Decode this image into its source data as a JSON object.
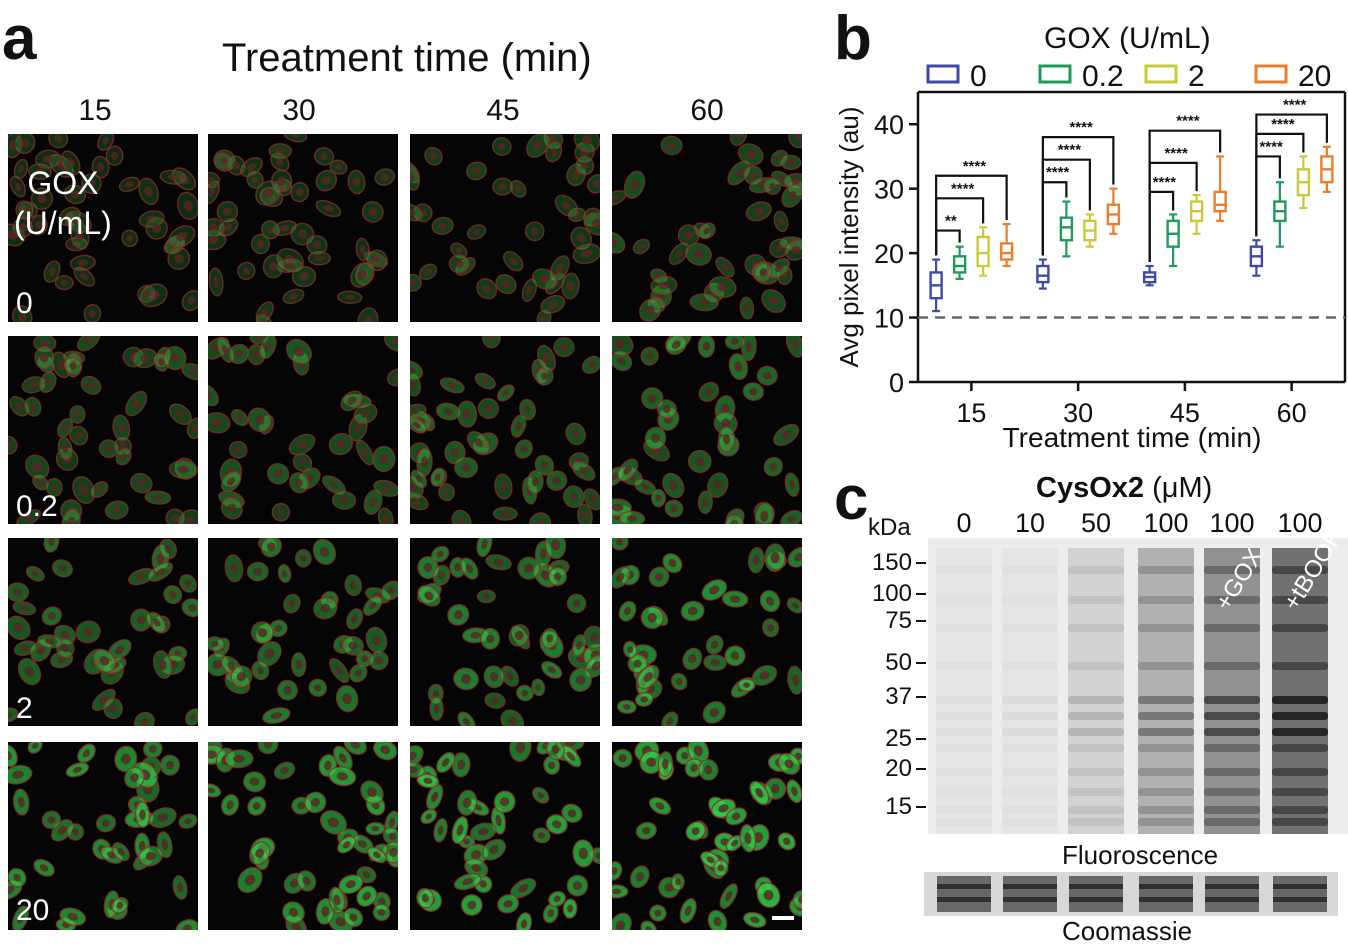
{
  "panel_a": {
    "letter": "a",
    "title": "Treatment time (min)",
    "time_labels": [
      "15",
      "30",
      "45",
      "60"
    ],
    "gox_label_line1": "GOX",
    "gox_label_line2": "(U/mL)",
    "row_labels": [
      "0",
      "0.2",
      "2",
      "20"
    ],
    "intensity_by_row": [
      0.15,
      0.35,
      0.55,
      0.8
    ],
    "intensity_boost_by_col": [
      0.0,
      0.05,
      0.1,
      0.2
    ],
    "colors": {
      "cell_green": "#2fd24a",
      "cell_red": "#8b2a2a",
      "background": "#050505"
    }
  },
  "panel_b": {
    "letter": "b",
    "legend_title": "GOX (U/mL)",
    "chart_data": {
      "type": "box",
      "categories": [
        "15",
        "30",
        "45",
        "60"
      ],
      "xlabel": "Treatment time (min)",
      "ylabel": "Avg pixel intensity (au)",
      "ylim": [
        0,
        45
      ],
      "yticks": [
        0,
        10,
        20,
        30,
        40
      ],
      "reference_line": 10,
      "legend_position": "top",
      "series": [
        {
          "name": "0",
          "color": "#3f4aa6",
          "boxes": [
            {
              "min": 11,
              "q1": 13,
              "median": 15,
              "q3": 17,
              "max": 19
            },
            {
              "min": 14.5,
              "q1": 15.5,
              "median": 16.5,
              "q3": 18,
              "max": 19
            },
            {
              "min": 15,
              "q1": 15.5,
              "median": 16.3,
              "q3": 17,
              "max": 18
            },
            {
              "min": 16.5,
              "q1": 18,
              "median": 19.5,
              "q3": 21,
              "max": 22
            }
          ]
        },
        {
          "name": "0.2",
          "color": "#1f9a5a",
          "boxes": [
            {
              "min": 16,
              "q1": 17,
              "median": 18,
              "q3": 19.5,
              "max": 21
            },
            {
              "min": 19.5,
              "q1": 22,
              "median": 24,
              "q3": 25.5,
              "max": 28
            },
            {
              "min": 18,
              "q1": 21,
              "median": 23,
              "q3": 25,
              "max": 26
            },
            {
              "min": 21,
              "q1": 25,
              "median": 26.5,
              "q3": 28,
              "max": 31
            }
          ]
        },
        {
          "name": "2",
          "color": "#c9c93a",
          "boxes": [
            {
              "min": 16.5,
              "q1": 18,
              "median": 20,
              "q3": 22.5,
              "max": 24
            },
            {
              "min": 21,
              "q1": 22,
              "median": 23.5,
              "q3": 25,
              "max": 26
            },
            {
              "min": 23,
              "q1": 25,
              "median": 26.5,
              "q3": 28,
              "max": 29
            },
            {
              "min": 27,
              "q1": 29,
              "median": 31,
              "q3": 33,
              "max": 35
            }
          ]
        },
        {
          "name": "20",
          "color": "#ee7d2a",
          "boxes": [
            {
              "min": 18,
              "q1": 19,
              "median": 20,
              "q3": 21.5,
              "max": 24.5
            },
            {
              "min": 23,
              "q1": 24.5,
              "median": 26,
              "q3": 27.5,
              "max": 30
            },
            {
              "min": 25,
              "q1": 26.5,
              "median": 27.5,
              "q3": 29.5,
              "max": 35
            },
            {
              "min": 29.5,
              "q1": 31,
              "median": 33,
              "q3": 35,
              "max": 36.5
            }
          ]
        }
      ],
      "significance": [
        {
          "group": 0,
          "to_series": 1,
          "label": "**",
          "y": 23.5
        },
        {
          "group": 0,
          "to_series": 2,
          "label": "****",
          "y": 28.5
        },
        {
          "group": 0,
          "to_series": 3,
          "label": "****",
          "y": 32
        },
        {
          "group": 1,
          "to_series": 1,
          "label": "****",
          "y": 31
        },
        {
          "group": 1,
          "to_series": 2,
          "label": "****",
          "y": 34.5
        },
        {
          "group": 1,
          "to_series": 3,
          "label": "****",
          "y": 38
        },
        {
          "group": 2,
          "to_series": 1,
          "label": "****",
          "y": 29.5
        },
        {
          "group": 2,
          "to_series": 2,
          "label": "****",
          "y": 34
        },
        {
          "group": 2,
          "to_series": 3,
          "label": "****",
          "y": 39
        },
        {
          "group": 3,
          "to_series": 1,
          "label": "****",
          "y": 35
        },
        {
          "group": 3,
          "to_series": 2,
          "label": "****",
          "y": 38.5
        },
        {
          "group": 3,
          "to_series": 3,
          "label": "****",
          "y": 41.5
        }
      ]
    }
  },
  "panel_c": {
    "letter": "c",
    "title_bold": "CysOx2",
    "title_unit": " (μM)",
    "kda_label": "kDa",
    "lane_labels": [
      "0",
      "10",
      "50",
      "100",
      "100",
      "100"
    ],
    "lane_treatments": [
      "",
      "",
      "",
      "",
      "+GOX",
      "+tBOOH"
    ],
    "marker_kda": [
      "150",
      "100",
      "75",
      "50",
      "37",
      "25",
      "20",
      "15"
    ],
    "lane_signal": [
      0.05,
      0.06,
      0.2,
      0.45,
      0.7,
      0.95
    ],
    "fluorescence_label": "Fluoroscence",
    "coomassie_label": "Coomassie"
  }
}
